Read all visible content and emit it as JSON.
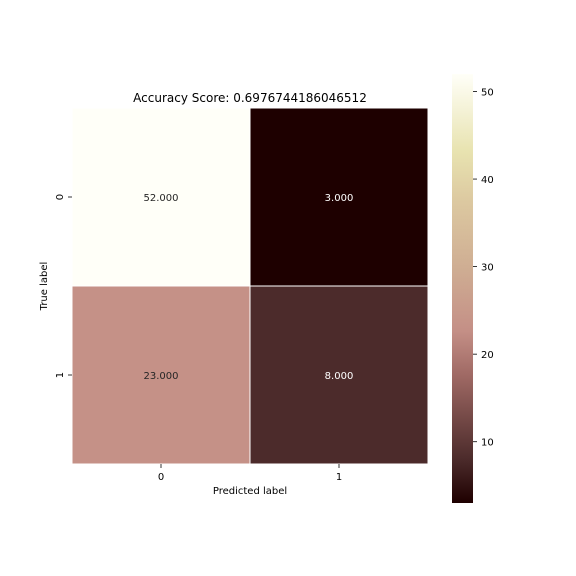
{
  "chart_data": {
    "type": "heatmap",
    "title": "Accuracy Score: 0.6976744186046512",
    "xlabel": "Predicted label",
    "ylabel": "True label",
    "x_categories": [
      "0",
      "1"
    ],
    "y_categories": [
      "0",
      "1"
    ],
    "values": [
      [
        52,
        3
      ],
      [
        23,
        8
      ]
    ],
    "cell_labels": [
      [
        "52.000",
        "3.000"
      ],
      [
        "23.000",
        "8.000"
      ]
    ],
    "colormap": "pink",
    "color_range": [
      3,
      52
    ],
    "colorbar": {
      "ticks": [
        10,
        20,
        30,
        40,
        50
      ],
      "tick_labels": [
        "10",
        "20",
        "30",
        "40",
        "50"
      ]
    }
  }
}
